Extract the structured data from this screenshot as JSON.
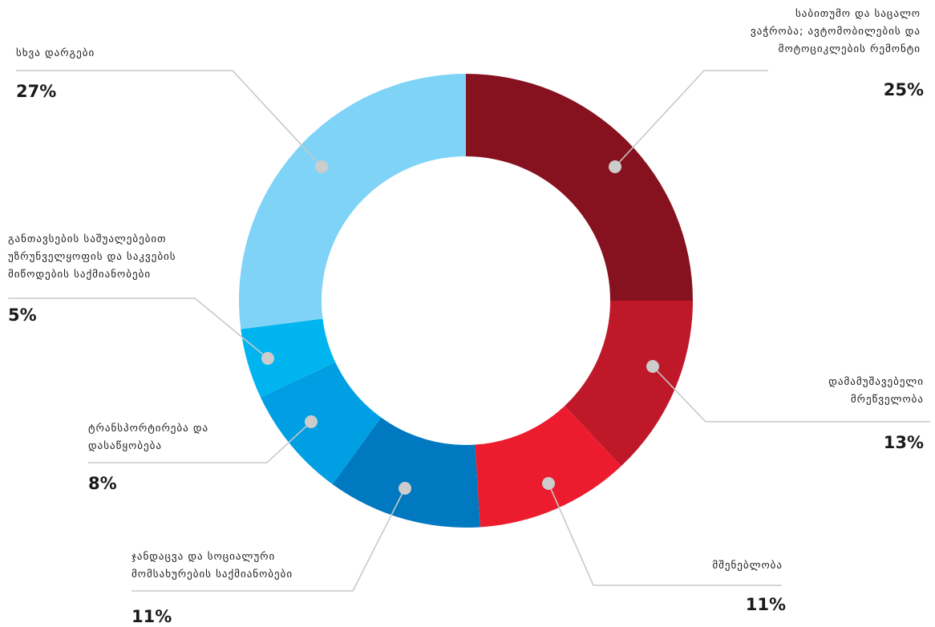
{
  "chart_data": {
    "type": "pie",
    "variant": "donut",
    "slices": [
      {
        "label_lines": [
          "საბითუმო და საცალო",
          "ვაჭრობა; ავტომობილების და",
          "მოტოციკლების რემონტი"
        ],
        "value": 25,
        "display": "25%",
        "color": "#86121f"
      },
      {
        "label_lines": [
          "დამამუშავებელი",
          "მრეწველობა"
        ],
        "value": 13,
        "display": "13%",
        "color": "#be1829"
      },
      {
        "label_lines": [
          "მშენებლობა"
        ],
        "value": 11,
        "display": "11%",
        "color": "#ec1c2e"
      },
      {
        "label_lines": [
          "ჯანდაცვა და სოციალური",
          "მომსახურების საქმიანობები"
        ],
        "value": 11,
        "display": "11%",
        "color": "#0079c1"
      },
      {
        "label_lines": [
          "ტრანსპორტირება და",
          "დასაწყობება"
        ],
        "value": 8,
        "display": "8%",
        "color": "#009fe3"
      },
      {
        "label_lines": [
          "განთავსების საშუალებებით",
          "უზრუნველყოფის და საკვების",
          "მიწოდების საქმიანობები"
        ],
        "value": 5,
        "display": "5%",
        "color": "#00b5ef"
      },
      {
        "label_lines": [
          "სხვა დარგები"
        ],
        "value": 27,
        "display": "27%",
        "color": "#7ed3f7"
      }
    ],
    "marker_color": "#cccccc",
    "leader_color": "#c8c8c8"
  }
}
